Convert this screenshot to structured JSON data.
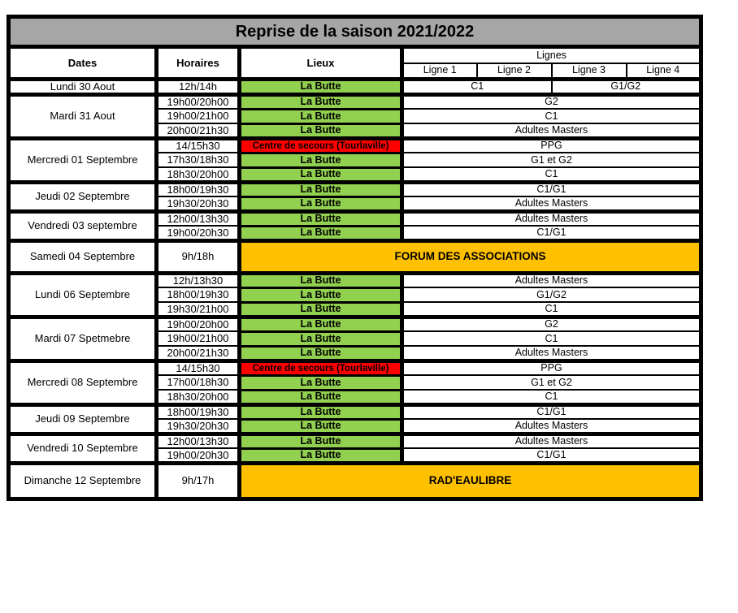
{
  "title": "Reprise de la saison 2021/2022",
  "headers": {
    "dates": "Dates",
    "horaires": "Horaires",
    "lieux": "Lieux",
    "lignes_group": "Lignes",
    "sub_lignes": [
      "Ligne 1",
      "Ligne 2",
      "Ligne 3",
      "Ligne 4"
    ]
  },
  "colors": {
    "green": "#92D050",
    "red": "#FF0000",
    "orange": "#FFC000",
    "header_gray": "#A6A6A6",
    "border_black": "#000000"
  },
  "schedule": {
    "groups": [
      {
        "date": "Lundi 30 Aout",
        "rows": [
          {
            "time": "12h/14h",
            "lieu": {
              "label": "La Butte",
              "color": "green"
            },
            "lignes": [
              {
                "label": "C1",
                "span": 2
              },
              {
                "label": "G1/G2",
                "span": 2
              }
            ]
          }
        ]
      },
      {
        "date": "Mardi 31 Aout",
        "rows": [
          {
            "time": "19h00/20h00",
            "lieu": {
              "label": "La Butte",
              "color": "green"
            },
            "lignes": [
              {
                "label": "G2",
                "span": 4
              }
            ]
          },
          {
            "time": "19h00/21h00",
            "lieu": {
              "label": "La Butte",
              "color": "green"
            },
            "lignes": [
              {
                "label": "C1",
                "span": 4
              }
            ]
          },
          {
            "time": "20h00/21h30",
            "lieu": {
              "label": "La Butte",
              "color": "green"
            },
            "lignes": [
              {
                "label": "Adultes Masters",
                "span": 4
              }
            ]
          }
        ]
      },
      {
        "date": "Mercredi 01 Septembre",
        "rows": [
          {
            "time": "14/15h30",
            "lieu": {
              "label": "Centre de secours (Tourlaville)",
              "color": "red"
            },
            "lignes": [
              {
                "label": "PPG",
                "span": 4
              }
            ]
          },
          {
            "time": "17h30/18h30",
            "lieu": {
              "label": "La Butte",
              "color": "green"
            },
            "lignes": [
              {
                "label": "G1 et G2",
                "span": 4
              }
            ]
          },
          {
            "time": "18h30/20h00",
            "lieu": {
              "label": "La Butte",
              "color": "green"
            },
            "lignes": [
              {
                "label": "C1",
                "span": 4
              }
            ]
          }
        ]
      },
      {
        "date": "Jeudi 02 Septembre",
        "rows": [
          {
            "time": "18h00/19h30",
            "lieu": {
              "label": "La Butte",
              "color": "green"
            },
            "lignes": [
              {
                "label": "C1/G1",
                "span": 4
              }
            ]
          },
          {
            "time": "19h30/20h30",
            "lieu": {
              "label": "La Butte",
              "color": "green"
            },
            "lignes": [
              {
                "label": "Adultes Masters",
                "span": 4
              }
            ]
          }
        ]
      },
      {
        "date": "Vendredi 03 septembre",
        "rows": [
          {
            "time": "12h00/13h30",
            "lieu": {
              "label": "La Butte",
              "color": "green"
            },
            "lignes": [
              {
                "label": "Adultes Masters",
                "span": 4
              }
            ]
          },
          {
            "time": "19h00/20h30",
            "lieu": {
              "label": "La Butte",
              "color": "green"
            },
            "lignes": [
              {
                "label": "C1/G1",
                "span": 4
              }
            ]
          }
        ]
      },
      {
        "date": "Samedi 04 Septembre",
        "rows": [
          {
            "time": "9h/18h",
            "event": {
              "label": "FORUM DES ASSOCIATIONS",
              "color": "orange",
              "span": 5
            }
          }
        ]
      },
      {
        "date": "Lundi 06 Septembre",
        "rows": [
          {
            "time": "12h/13h30",
            "lieu": {
              "label": "La Butte",
              "color": "green"
            },
            "lignes": [
              {
                "label": "Adultes Masters",
                "span": 4
              }
            ]
          },
          {
            "time": "18h00/19h30",
            "lieu": {
              "label": "La Butte",
              "color": "green"
            },
            "lignes": [
              {
                "label": "G1/G2",
                "span": 4
              }
            ]
          },
          {
            "time": "19h30/21h00",
            "lieu": {
              "label": "La Butte",
              "color": "green"
            },
            "lignes": [
              {
                "label": "C1",
                "span": 4
              }
            ]
          }
        ]
      },
      {
        "date": "Mardi 07 Spetmebre",
        "rows": [
          {
            "time": "19h00/20h00",
            "lieu": {
              "label": "La Butte",
              "color": "green"
            },
            "lignes": [
              {
                "label": "G2",
                "span": 4
              }
            ]
          },
          {
            "time": "19h00/21h00",
            "lieu": {
              "label": "La Butte",
              "color": "green"
            },
            "lignes": [
              {
                "label": "C1",
                "span": 4
              }
            ]
          },
          {
            "time": "20h00/21h30",
            "lieu": {
              "label": "La Butte",
              "color": "green"
            },
            "lignes": [
              {
                "label": "Adultes Masters",
                "span": 4
              }
            ]
          }
        ]
      },
      {
        "date": "Mercredi 08 Septembre",
        "rows": [
          {
            "time": "14/15h30",
            "lieu": {
              "label": "Centre de secours (Tourlaville)",
              "color": "red"
            },
            "lignes": [
              {
                "label": "PPG",
                "span": 4
              }
            ]
          },
          {
            "time": "17h00/18h30",
            "lieu": {
              "label": "La Butte",
              "color": "green"
            },
            "lignes": [
              {
                "label": "G1 et G2",
                "span": 4
              }
            ]
          },
          {
            "time": "18h30/20h00",
            "lieu": {
              "label": "La Butte",
              "color": "green"
            },
            "lignes": [
              {
                "label": "C1",
                "span": 4
              }
            ]
          }
        ]
      },
      {
        "date": "Jeudi 09 Septembre",
        "rows": [
          {
            "time": "18h00/19h30",
            "lieu": {
              "label": "La Butte",
              "color": "green"
            },
            "lignes": [
              {
                "label": "C1/G1",
                "span": 4
              }
            ]
          },
          {
            "time": "19h30/20h30",
            "lieu": {
              "label": "La Butte",
              "color": "green"
            },
            "lignes": [
              {
                "label": "Adultes Masters",
                "span": 4
              }
            ]
          }
        ]
      },
      {
        "date": "Vendredi 10 Septembre",
        "rows": [
          {
            "time": "12h00/13h30",
            "lieu": {
              "label": "La Butte",
              "color": "green"
            },
            "lignes": [
              {
                "label": "Adultes Masters",
                "span": 4
              }
            ]
          },
          {
            "time": "19h00/20h30",
            "lieu": {
              "label": "La Butte",
              "color": "green"
            },
            "lignes": [
              {
                "label": "C1/G1",
                "span": 4
              }
            ]
          }
        ]
      },
      {
        "date": "Dimanche 12 Septembre",
        "rows": [
          {
            "time": "9h/17h",
            "event": {
              "label": "RAD'EAULIBRE",
              "color": "orange",
              "span": 5
            }
          }
        ]
      }
    ]
  }
}
